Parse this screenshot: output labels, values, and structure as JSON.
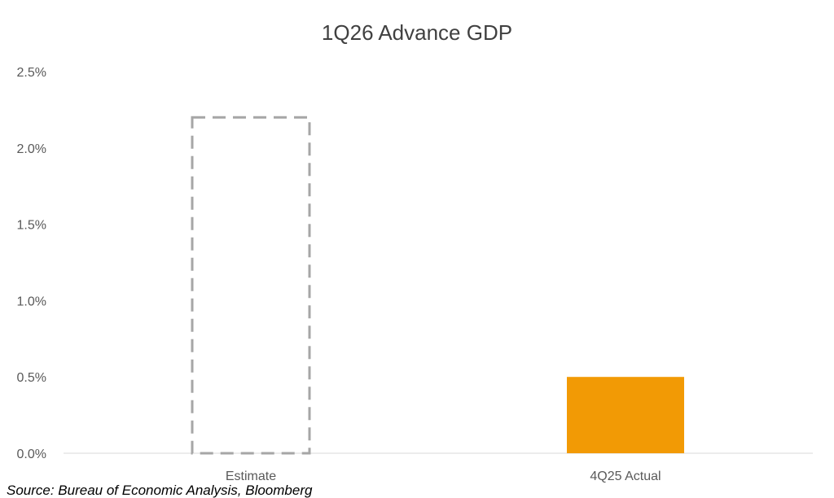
{
  "chart_data": {
    "type": "bar",
    "title": "1Q26 Advance GDP",
    "categories": [
      "Estimate",
      "4Q25 Actual"
    ],
    "values": [
      2.2,
      0.5
    ],
    "bar_styles": [
      "dashed-outline",
      "solid"
    ],
    "colors": {
      "outline": "#A6A6A6",
      "fill": "#F29A05",
      "axis": "#D9D9D9",
      "title": "#404040",
      "labels": "#595959"
    },
    "y_ticks": [
      "0.0%",
      "0.5%",
      "1.0%",
      "1.5%",
      "2.0%",
      "2.5%"
    ],
    "ylim": [
      0,
      2.5
    ],
    "grid": false,
    "legend": "none",
    "xlabel": "",
    "ylabel": ""
  },
  "source": "Source: Bureau of Economic Analysis, Bloomberg"
}
